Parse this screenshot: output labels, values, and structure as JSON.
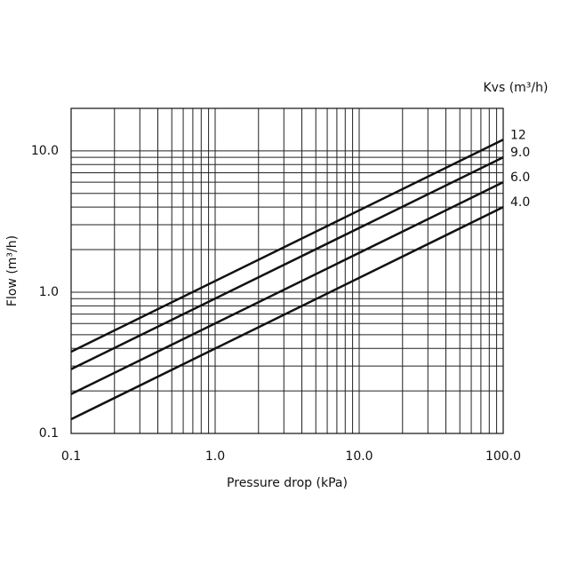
{
  "chart_data": {
    "type": "line",
    "x_label": "Pressure drop (kPa)",
    "y_label": "Flow (m³/h)",
    "legend_title": "Kvs (m³/h)",
    "x": [
      0.1,
      100
    ],
    "series": [
      {
        "name": "12",
        "color": "#111111",
        "values": [
          0.379,
          12
        ]
      },
      {
        "name": "9.0",
        "color": "#111111",
        "values": [
          0.285,
          9
        ]
      },
      {
        "name": "6.0",
        "color": "#111111",
        "values": [
          0.19,
          6
        ]
      },
      {
        "name": "4.0",
        "color": "#111111",
        "values": [
          0.126,
          4
        ]
      }
    ],
    "xlim": [
      0.1,
      100
    ],
    "ylim": [
      0.1,
      20
    ],
    "xticks": [
      0.1,
      {
        "value": 1,
        "label": "1.0"
      },
      {
        "value": 10,
        "label": "10.0"
      },
      {
        "value": 100,
        "label": "100.0"
      }
    ],
    "yticks": [
      0.1,
      {
        "value": 1,
        "label": "1.0"
      },
      {
        "value": 10,
        "label": "10.0"
      }
    ],
    "xscale": "log",
    "yscale": "log",
    "grid": true,
    "minor_grid": true,
    "legend": "right"
  }
}
